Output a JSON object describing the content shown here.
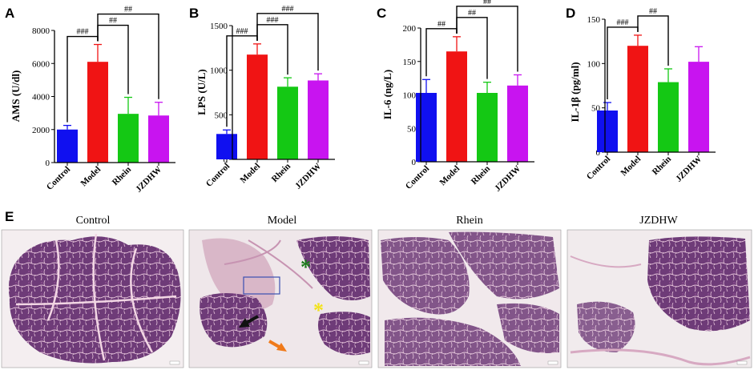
{
  "colors": {
    "Control": "#1010f0",
    "Model": "#f01414",
    "Rhein": "#14c814",
    "JZDHW": "#c814f0"
  },
  "chart_data": [
    {
      "type": "bar",
      "panel": "A",
      "ylabel": "AMS (U/dl)",
      "categories": [
        "Control",
        "Model",
        "Rhein",
        "JZDHW"
      ],
      "values": [
        2000,
        6100,
        2950,
        2850
      ],
      "errors": [
        250,
        1050,
        1000,
        800
      ],
      "ylim": [
        0,
        8000
      ],
      "yticks": [
        0,
        2000,
        4000,
        6000,
        8000
      ],
      "significance": [
        {
          "from": 0,
          "to": 1,
          "label": "###",
          "level": 0
        },
        {
          "from": 1,
          "to": 2,
          "label": "##",
          "level": 1
        },
        {
          "from": 1,
          "to": 3,
          "label": "##",
          "level": 2
        }
      ]
    },
    {
      "type": "bar",
      "panel": "B",
      "ylabel": "LPS (U/L)",
      "categories": [
        "Control",
        "Model",
        "Rhein",
        "JZDHW"
      ],
      "values": [
        285,
        1175,
        815,
        885
      ],
      "errors": [
        45,
        120,
        100,
        75
      ],
      "ylim": [
        0,
        1500
      ],
      "yticks": [
        0,
        500,
        1000,
        1500
      ],
      "significance": [
        {
          "from": 0,
          "to": 1,
          "label": "###",
          "level": 0
        },
        {
          "from": 1,
          "to": 2,
          "label": "###",
          "level": 1
        },
        {
          "from": 1,
          "to": 3,
          "label": "###",
          "level": 2
        }
      ]
    },
    {
      "type": "bar",
      "panel": "C",
      "ylabel": "IL-6 (ng/L)",
      "categories": [
        "Control",
        "Model",
        "Rhein",
        "JZDHW"
      ],
      "values": [
        103,
        165,
        103,
        114
      ],
      "errors": [
        20,
        22,
        16,
        16
      ],
      "ylim": [
        0,
        200
      ],
      "yticks": [
        0,
        50,
        100,
        150,
        200
      ],
      "significance": [
        {
          "from": 0,
          "to": 1,
          "label": "##",
          "level": 0
        },
        {
          "from": 1,
          "to": 2,
          "label": "##",
          "level": 1
        },
        {
          "from": 1,
          "to": 3,
          "label": "##",
          "level": 2
        }
      ]
    },
    {
      "type": "bar",
      "panel": "D",
      "ylabel": "IL-1β (pg/ml)",
      "categories": [
        "Control",
        "Model",
        "Rhein",
        "JZDHW"
      ],
      "values": [
        47,
        120,
        79,
        102
      ],
      "errors": [
        9,
        12,
        15,
        17
      ],
      "ylim": [
        0,
        150
      ],
      "yticks": [
        0,
        50,
        100,
        150
      ],
      "significance": [
        {
          "from": 0,
          "to": 1,
          "label": "###",
          "level": 0
        },
        {
          "from": 1,
          "to": 2,
          "label": "##",
          "level": 1
        }
      ]
    }
  ],
  "histology": {
    "panel": "E",
    "captions": [
      "Control",
      "Model",
      "Rhein",
      "JZDHW"
    ],
    "markers": [
      {
        "symbol": "*",
        "color": "#1a7a1a"
      },
      {
        "symbol": "*",
        "color": "#f2e21a"
      }
    ]
  }
}
